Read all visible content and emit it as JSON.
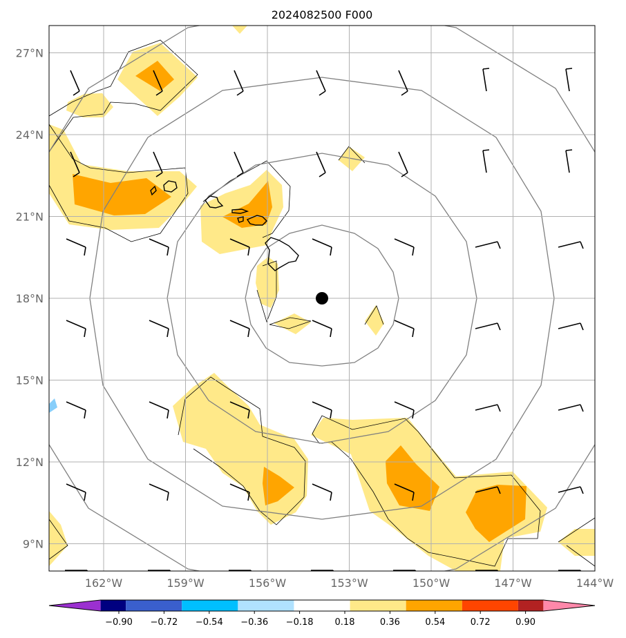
{
  "title": "2024082500 F000",
  "map": {
    "lon_range": [
      -164,
      -144
    ],
    "lat_range": [
      8,
      28
    ],
    "center_marker": {
      "lon": -154,
      "lat": 18
    },
    "lat_ticks": [
      {
        "value": 9,
        "label": "9°N"
      },
      {
        "value": 12,
        "label": "12°N"
      },
      {
        "value": 15,
        "label": "15°N"
      },
      {
        "value": 18,
        "label": "18°N"
      },
      {
        "value": 21,
        "label": "21°N"
      },
      {
        "value": 24,
        "label": "24°N"
      },
      {
        "value": 27,
        "label": "27°N"
      }
    ],
    "lon_ticks": [
      {
        "value": -162,
        "label": "162°W"
      },
      {
        "value": -159,
        "label": "159°W"
      },
      {
        "value": -156,
        "label": "156°W"
      },
      {
        "value": -153,
        "label": "153°W"
      },
      {
        "value": -150,
        "label": "150°W"
      },
      {
        "value": -147,
        "label": "147°W"
      },
      {
        "value": -144,
        "label": "144°W"
      }
    ],
    "range_rings_deg": [
      2.9,
      5.7,
      8.5,
      11.3
    ],
    "grid": true
  },
  "colorbar": {
    "labels": [
      "−0.90",
      "−0.72",
      "−0.54",
      "−0.36",
      "−0.18",
      "0.18",
      "0.36",
      "0.54",
      "0.72",
      "0.90"
    ],
    "colors": [
      "#9b30d0",
      "#000080",
      "#3a5fcd",
      "#00bfff",
      "#b0e2ff",
      "#ffffff",
      "#ffe989",
      "#ffa500",
      "#ff4500",
      "#b22222",
      "#ff88aa"
    ]
  },
  "colors": {
    "light_yellow": "#ffe989",
    "orange": "#ffa500",
    "light_blue": "#87cefa"
  }
}
